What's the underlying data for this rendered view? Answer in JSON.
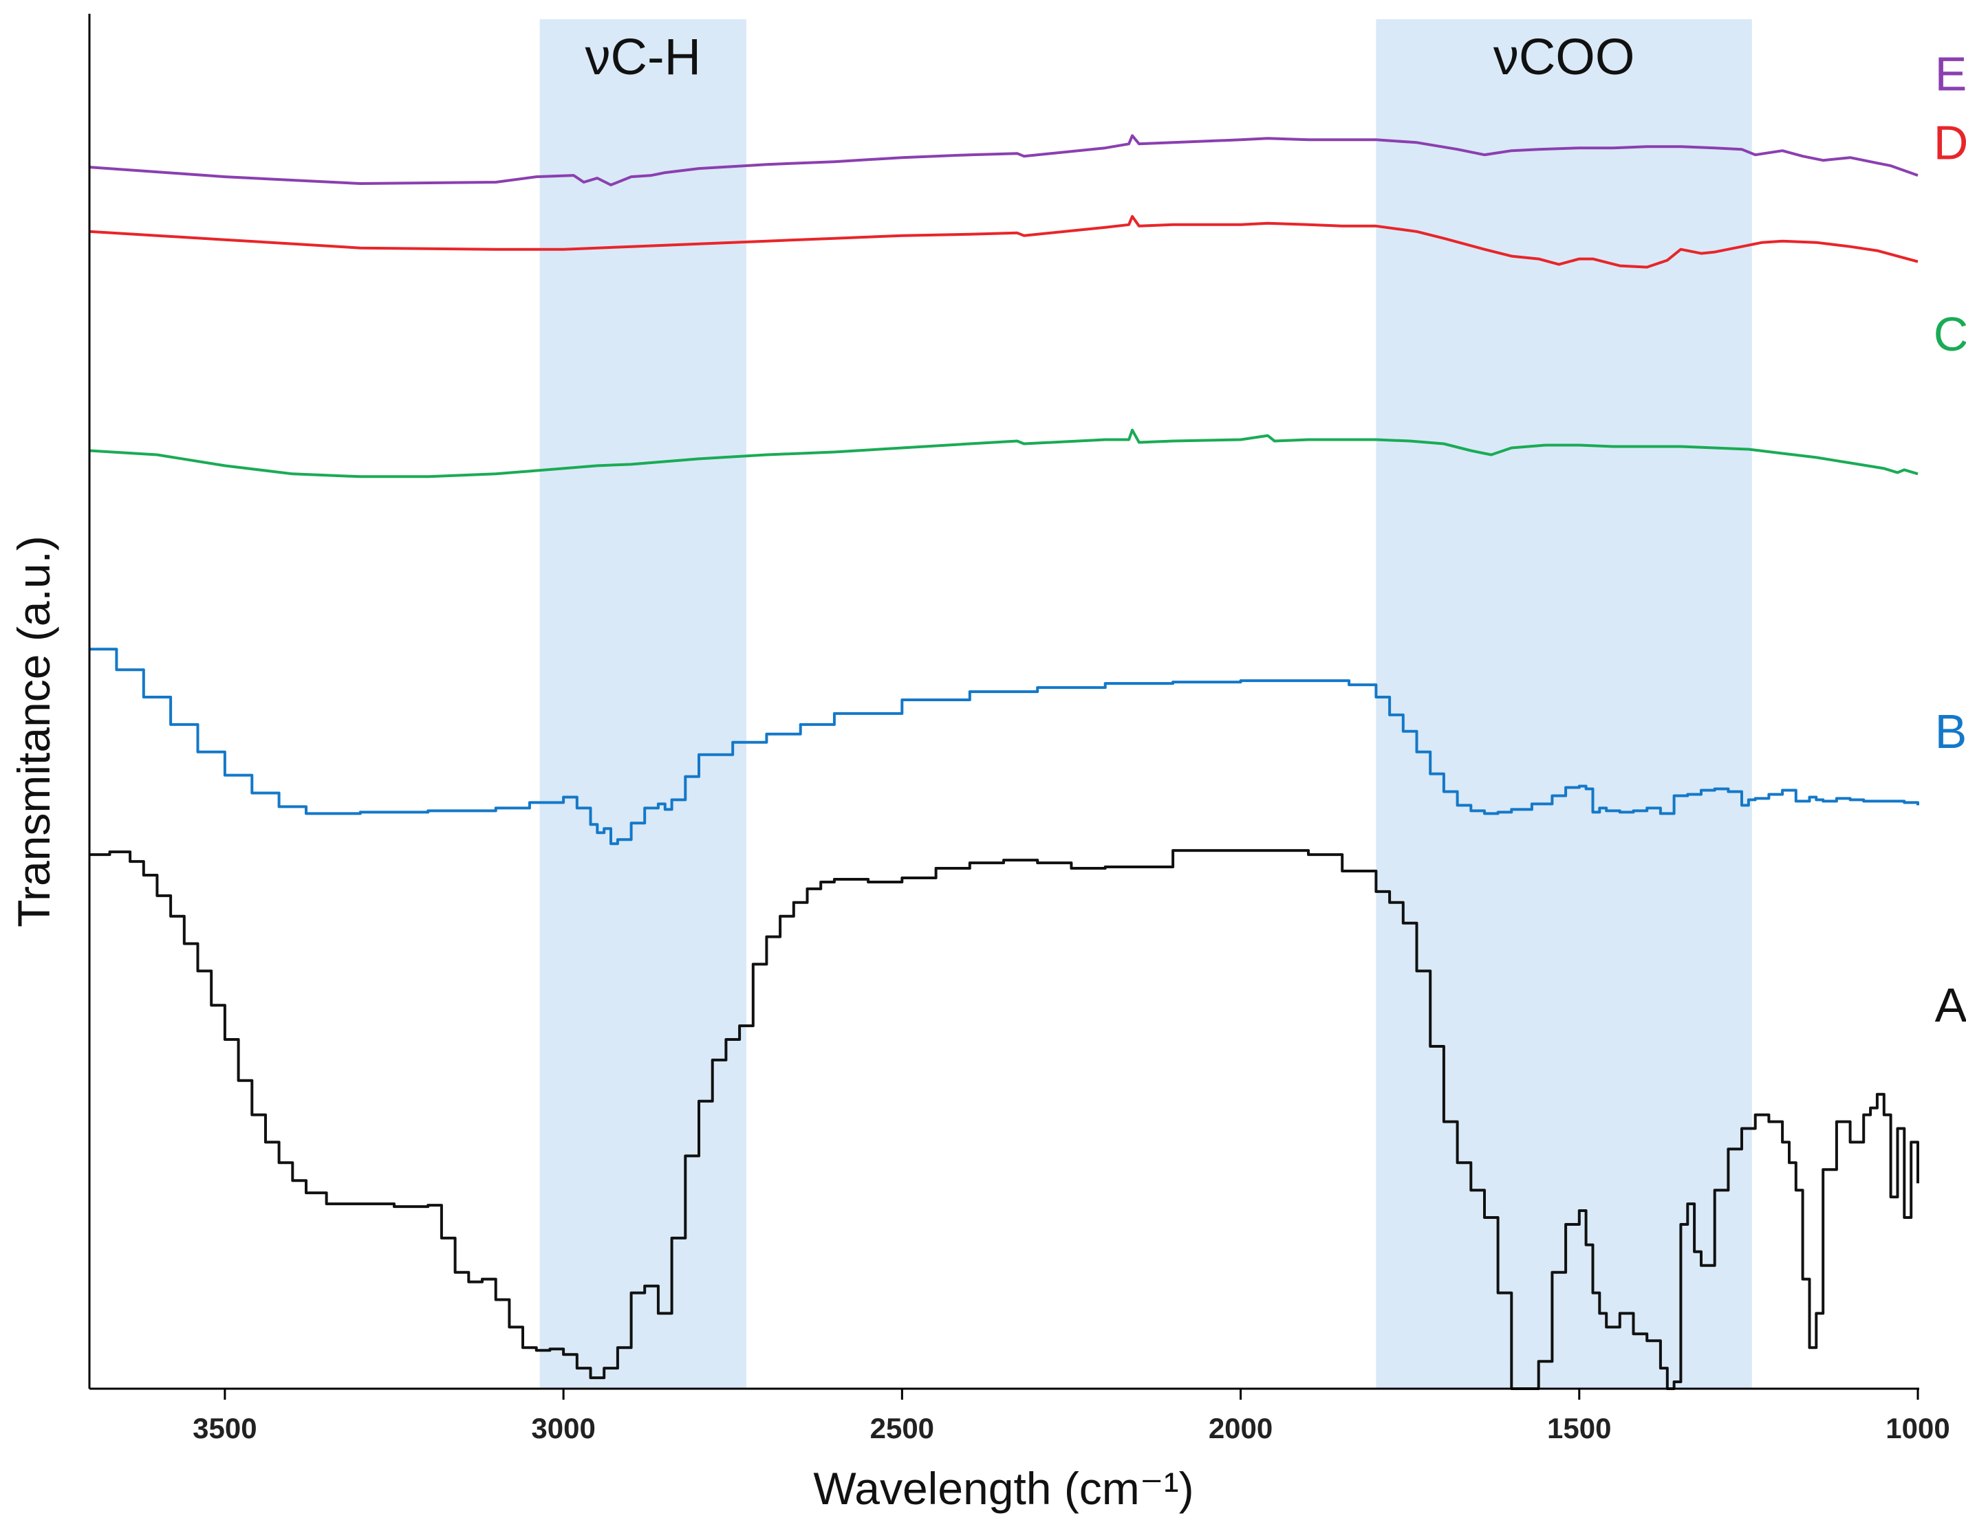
{
  "chart_data": {
    "type": "line",
    "title": "",
    "xlabel": "Wavelength (cm⁻¹)",
    "ylabel": "Transmitance (a.u.)",
    "xlim": [
      3700,
      1000
    ],
    "ylim": [
      0,
      100
    ],
    "x_reversed": true,
    "xticks": [
      {
        "value": 3500,
        "label": "3500"
      },
      {
        "value": 3000,
        "label": "3000"
      },
      {
        "value": 2500,
        "label": "2500"
      },
      {
        "value": 2000,
        "label": "2000"
      },
      {
        "value": 1500,
        "label": "1500"
      },
      {
        "value": 1000,
        "label": "1000"
      }
    ],
    "bands": [
      {
        "name": "vC-H",
        "label": "νC-H",
        "x_from": 3035,
        "x_to": 2730
      },
      {
        "name": "vCOO",
        "label": "νCOO",
        "x_from": 1800,
        "x_to": 1245
      }
    ],
    "series": [
      {
        "name": "E",
        "label": "E",
        "color": "#8b3fb0",
        "step": false,
        "label_value": 96,
        "x": [
          3700,
          3500,
          3300,
          3100,
          3040,
          2985,
          2970,
          2950,
          2930,
          2900,
          2870,
          2850,
          2800,
          2700,
          2600,
          2500,
          2400,
          2330,
          2320,
          2200,
          2165,
          2160,
          2150,
          2100,
          2000,
          1960,
          1900,
          1850,
          1800,
          1740,
          1680,
          1640,
          1600,
          1560,
          1500,
          1450,
          1400,
          1350,
          1300,
          1260,
          1240,
          1200,
          1170,
          1140,
          1100,
          1060,
          1040,
          1000
        ],
        "values": [
          89.2,
          88.5,
          88.0,
          88.1,
          88.5,
          88.6,
          88.1,
          88.4,
          87.9,
          88.5,
          88.6,
          88.8,
          89.1,
          89.4,
          89.6,
          89.9,
          90.1,
          90.2,
          90.0,
          90.6,
          90.9,
          91.5,
          90.9,
          91.0,
          91.2,
          91.3,
          91.2,
          91.2,
          91.2,
          91.0,
          90.5,
          90.1,
          90.4,
          90.5,
          90.6,
          90.6,
          90.7,
          90.7,
          90.6,
          90.5,
          90.1,
          90.4,
          90.0,
          89.7,
          89.9,
          89.5,
          89.3,
          88.6
        ]
      },
      {
        "name": "D",
        "label": "D",
        "color": "#e8252a",
        "step": false,
        "label_value": 91,
        "x": [
          3700,
          3500,
          3300,
          3100,
          3000,
          2900,
          2800,
          2700,
          2600,
          2500,
          2400,
          2330,
          2320,
          2200,
          2165,
          2160,
          2150,
          2100,
          2000,
          1960,
          1900,
          1850,
          1800,
          1740,
          1700,
          1640,
          1600,
          1560,
          1530,
          1500,
          1480,
          1440,
          1400,
          1370,
          1350,
          1320,
          1300,
          1260,
          1230,
          1200,
          1150,
          1100,
          1060,
          1030,
          1000
        ],
        "values": [
          84.5,
          83.9,
          83.3,
          83.2,
          83.2,
          83.4,
          83.6,
          83.8,
          84.0,
          84.2,
          84.3,
          84.4,
          84.2,
          84.8,
          85.0,
          85.6,
          84.9,
          85.0,
          85.0,
          85.1,
          85.0,
          84.9,
          84.9,
          84.5,
          84.0,
          83.2,
          82.7,
          82.5,
          82.1,
          82.5,
          82.5,
          82.0,
          81.9,
          82.4,
          83.2,
          82.9,
          83.0,
          83.4,
          83.7,
          83.8,
          83.7,
          83.4,
          83.1,
          82.7,
          82.3
        ]
      },
      {
        "name": "C",
        "label": "C",
        "color": "#1aab55",
        "step": false,
        "label_value": 77,
        "x": [
          3700,
          3600,
          3500,
          3400,
          3300,
          3200,
          3100,
          3000,
          2950,
          2900,
          2800,
          2700,
          2600,
          2500,
          2400,
          2330,
          2320,
          2200,
          2165,
          2160,
          2150,
          2100,
          2000,
          1960,
          1950,
          1900,
          1850,
          1800,
          1750,
          1700,
          1660,
          1630,
          1600,
          1550,
          1500,
          1450,
          1400,
          1350,
          1300,
          1250,
          1200,
          1150,
          1100,
          1050,
          1030,
          1020,
          1000
        ],
        "values": [
          68.5,
          68.2,
          67.4,
          66.8,
          66.6,
          66.6,
          66.8,
          67.2,
          67.4,
          67.5,
          67.9,
          68.2,
          68.4,
          68.7,
          69.0,
          69.2,
          69.0,
          69.3,
          69.3,
          70.0,
          69.1,
          69.2,
          69.3,
          69.6,
          69.2,
          69.3,
          69.3,
          69.3,
          69.2,
          69.0,
          68.5,
          68.2,
          68.7,
          68.9,
          68.9,
          68.8,
          68.8,
          68.8,
          68.7,
          68.6,
          68.3,
          68.0,
          67.6,
          67.2,
          66.9,
          67.1,
          66.8
        ]
      },
      {
        "name": "B",
        "label": "B",
        "color": "#1478c8",
        "step": true,
        "label_value": 48,
        "x": [
          3700,
          3660,
          3620,
          3580,
          3540,
          3500,
          3460,
          3420,
          3380,
          3300,
          3200,
          3100,
          3050,
          3000,
          2980,
          2960,
          2950,
          2940,
          2930,
          2920,
          2900,
          2880,
          2860,
          2850,
          2840,
          2820,
          2800,
          2750,
          2700,
          2650,
          2600,
          2500,
          2400,
          2300,
          2200,
          2100,
          2000,
          1900,
          1840,
          1800,
          1780,
          1760,
          1740,
          1720,
          1700,
          1680,
          1660,
          1640,
          1620,
          1600,
          1570,
          1540,
          1520,
          1500,
          1490,
          1480,
          1470,
          1460,
          1440,
          1420,
          1400,
          1380,
          1360,
          1340,
          1320,
          1300,
          1280,
          1260,
          1250,
          1240,
          1220,
          1200,
          1180,
          1160,
          1150,
          1140,
          1120,
          1100,
          1080,
          1060,
          1040,
          1020,
          1000
        ],
        "values": [
          54.0,
          52.5,
          50.5,
          48.5,
          46.5,
          44.8,
          43.5,
          42.5,
          42.0,
          42.1,
          42.2,
          42.4,
          42.8,
          43.2,
          42.4,
          41.2,
          40.6,
          40.9,
          39.8,
          40.1,
          41.3,
          42.4,
          42.7,
          42.3,
          43.0,
          44.7,
          46.3,
          47.2,
          47.8,
          48.5,
          49.3,
          50.3,
          50.9,
          51.2,
          51.5,
          51.6,
          51.7,
          51.7,
          51.4,
          50.5,
          49.2,
          48.0,
          46.5,
          44.9,
          43.6,
          42.6,
          42.2,
          42.0,
          42.1,
          42.3,
          42.7,
          43.3,
          43.9,
          44.0,
          43.8,
          42.1,
          42.4,
          42.2,
          42.1,
          42.2,
          42.4,
          42.0,
          43.3,
          43.4,
          43.7,
          43.8,
          43.6,
          42.6,
          43.0,
          43.1,
          43.4,
          43.7,
          42.9,
          43.2,
          43.0,
          42.9,
          43.1,
          43.0,
          42.9,
          42.9,
          42.9,
          42.8,
          42.6
        ]
      },
      {
        "name": "A",
        "label": "A",
        "color": "#111111",
        "step": true,
        "label_value": 28,
        "x": [
          3700,
          3670,
          3640,
          3620,
          3600,
          3580,
          3560,
          3540,
          3520,
          3500,
          3480,
          3460,
          3440,
          3420,
          3400,
          3380,
          3350,
          3300,
          3250,
          3200,
          3180,
          3160,
          3140,
          3120,
          3100,
          3080,
          3060,
          3040,
          3020,
          3000,
          2980,
          2960,
          2940,
          2920,
          2900,
          2880,
          2860,
          2840,
          2820,
          2800,
          2780,
          2760,
          2740,
          2720,
          2700,
          2680,
          2660,
          2640,
          2620,
          2600,
          2550,
          2500,
          2450,
          2400,
          2350,
          2300,
          2250,
          2200,
          2100,
          2000,
          1900,
          1850,
          1800,
          1780,
          1760,
          1740,
          1720,
          1700,
          1680,
          1660,
          1640,
          1620,
          1600,
          1580,
          1560,
          1540,
          1520,
          1500,
          1490,
          1480,
          1470,
          1460,
          1440,
          1420,
          1400,
          1380,
          1370,
          1360,
          1350,
          1340,
          1330,
          1320,
          1300,
          1280,
          1260,
          1240,
          1220,
          1200,
          1190,
          1180,
          1170,
          1160,
          1150,
          1140,
          1120,
          1100,
          1080,
          1070,
          1060,
          1050,
          1040,
          1030,
          1020,
          1010,
          1000
        ],
        "values": [
          39.0,
          39.2,
          38.5,
          37.5,
          36.0,
          34.5,
          32.5,
          30.5,
          28.0,
          25.5,
          22.5,
          20.0,
          18.0,
          16.5,
          15.2,
          14.3,
          13.5,
          13.5,
          13.3,
          13.4,
          11.0,
          8.5,
          7.8,
          8.0,
          6.5,
          4.5,
          3.0,
          2.8,
          2.9,
          2.5,
          1.5,
          0.8,
          1.5,
          3.0,
          7.0,
          7.5,
          5.5,
          11.0,
          17.0,
          21.0,
          24.0,
          25.5,
          26.5,
          31.0,
          33.0,
          34.5,
          35.5,
          36.5,
          37.0,
          37.2,
          37.0,
          37.3,
          38.0,
          38.4,
          38.6,
          38.4,
          38.0,
          38.1,
          39.3,
          39.3,
          39.0,
          37.8,
          36.3,
          35.5,
          34.0,
          30.5,
          25.0,
          19.5,
          16.5,
          14.5,
          12.5,
          7.0,
          0.0,
          0.0,
          2.0,
          8.5,
          12.0,
          13.0,
          10.5,
          7.0,
          5.5,
          4.5,
          5.5,
          4.0,
          3.5,
          1.5,
          0.0,
          0.5,
          12.0,
          13.5,
          10.0,
          9.0,
          14.5,
          17.5,
          19.0,
          20.0,
          19.5,
          18.0,
          16.5,
          14.5,
          8.0,
          3.0,
          5.5,
          16.0,
          19.5,
          18.0,
          20.0,
          20.5,
          21.5,
          20.0,
          14.0,
          19.0,
          12.5,
          18.0,
          15.0
        ]
      }
    ]
  }
}
